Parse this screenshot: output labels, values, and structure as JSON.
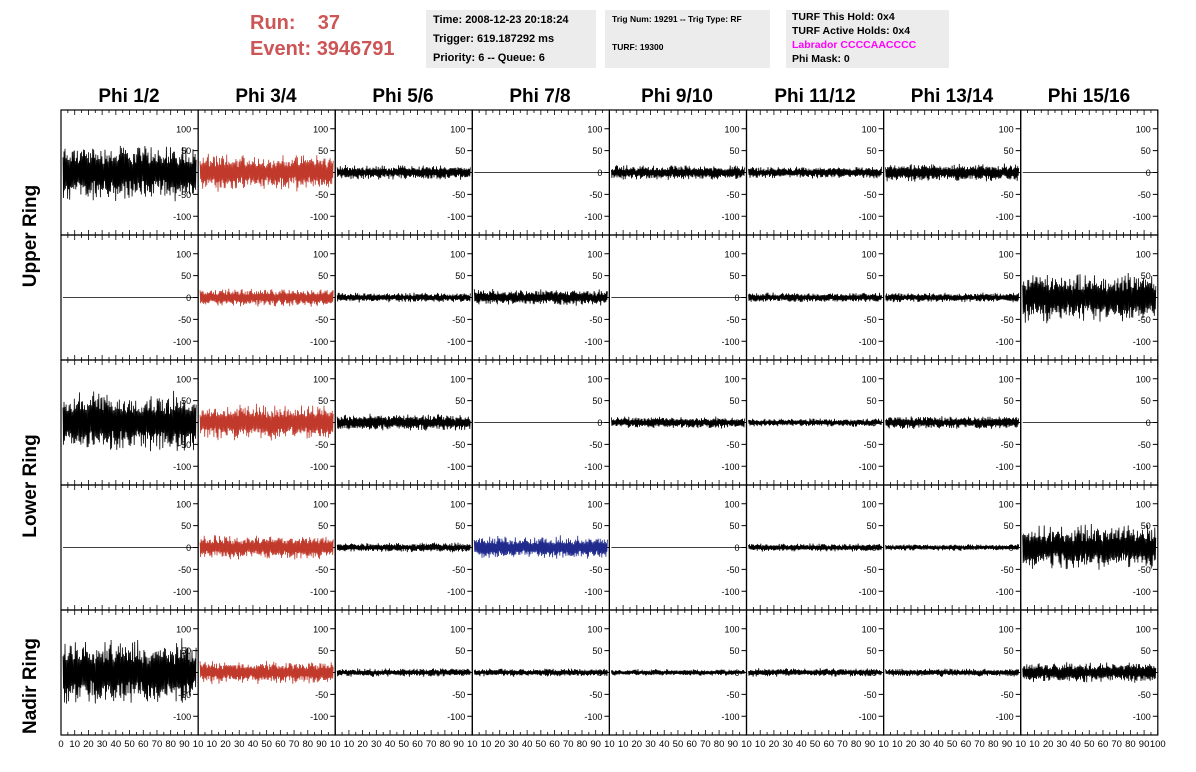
{
  "header": {
    "run_label": "Run:",
    "run_value": "37",
    "event_label": "Event:",
    "event_value": "3946791",
    "time": "Time: 2008-12-23 20:18:24",
    "trigger": "Trigger: 619.187292 ms",
    "priority": "Priority: 6 -- Queue: 6",
    "trig_num": "Trig Num: 19291 -- Trig Type: RF",
    "turf": "TURF: 19300",
    "turf_hold": "TURF This Hold: 0x4",
    "turf_active": "TURF Active Holds: 0x4",
    "labrador": "Labrador CCCCAACCCC",
    "phi_mask": "Phi Mask: 0"
  },
  "chart_data": {
    "type": "line",
    "columns": [
      "Phi 1/2",
      "Phi 3/4",
      "Phi 5/6",
      "Phi 7/8",
      "Phi 9/10",
      "Phi 11/12",
      "Phi 13/14",
      "Phi 15/16"
    ],
    "ring_labels": [
      "Upper Ring",
      "Lower Ring",
      "Nadir Ring"
    ],
    "xlim": [
      0,
      100
    ],
    "ylim": [
      -120,
      120
    ],
    "yticks": [
      -100,
      -50,
      0,
      50,
      100
    ],
    "xticks_first": [
      "0",
      "10",
      "20",
      "30",
      "40",
      "50",
      "60",
      "70",
      "80",
      "90",
      "10"
    ],
    "xticks_mid": [
      "10",
      "20",
      "30",
      "40",
      "50",
      "60",
      "70",
      "80",
      "90",
      "10"
    ],
    "xticks_last": [
      "10",
      "20",
      "30",
      "40",
      "50",
      "60",
      "70",
      "80",
      "90",
      "100"
    ],
    "colors": {
      "black": "#000000",
      "red": "#c0392b",
      "blue": "#1f2a8c",
      "magenta": "#ff00ff",
      "run": "#cc5555"
    },
    "rows": [
      [
        {
          "a": 70,
          "c": "black"
        },
        {
          "a": 45,
          "c": "red"
        },
        {
          "a": 18,
          "c": "black"
        },
        {
          "a": 0,
          "c": "black"
        },
        {
          "a": 18,
          "c": "black"
        },
        {
          "a": 14,
          "c": "black"
        },
        {
          "a": 22,
          "c": "black"
        },
        {
          "a": 0,
          "c": "black"
        }
      ],
      [
        {
          "a": 0,
          "c": "black"
        },
        {
          "a": 22,
          "c": "red"
        },
        {
          "a": 12,
          "c": "black"
        },
        {
          "a": 20,
          "c": "black"
        },
        {
          "a": 0,
          "c": "black"
        },
        {
          "a": 12,
          "c": "black"
        },
        {
          "a": 12,
          "c": "black"
        },
        {
          "a": 60,
          "c": "black"
        }
      ],
      [
        {
          "a": 75,
          "c": "black"
        },
        {
          "a": 45,
          "c": "red"
        },
        {
          "a": 20,
          "c": "black"
        },
        {
          "a": 0,
          "c": "black"
        },
        {
          "a": 14,
          "c": "black"
        },
        {
          "a": 10,
          "c": "black"
        },
        {
          "a": 16,
          "c": "black"
        },
        {
          "a": 0,
          "c": "black"
        }
      ],
      [
        {
          "a": 0,
          "c": "black"
        },
        {
          "a": 30,
          "c": "red"
        },
        {
          "a": 12,
          "c": "black"
        },
        {
          "a": 28,
          "c": "blue"
        },
        {
          "a": 0,
          "c": "black"
        },
        {
          "a": 10,
          "c": "black"
        },
        {
          "a": 8,
          "c": "black"
        },
        {
          "a": 55,
          "c": "black"
        }
      ],
      [
        {
          "a": 80,
          "c": "black"
        },
        {
          "a": 28,
          "c": "red"
        },
        {
          "a": 10,
          "c": "black"
        },
        {
          "a": 10,
          "c": "black"
        },
        {
          "a": 8,
          "c": "black"
        },
        {
          "a": 10,
          "c": "black"
        },
        {
          "a": 10,
          "c": "black"
        },
        {
          "a": 25,
          "c": "black"
        }
      ]
    ]
  }
}
